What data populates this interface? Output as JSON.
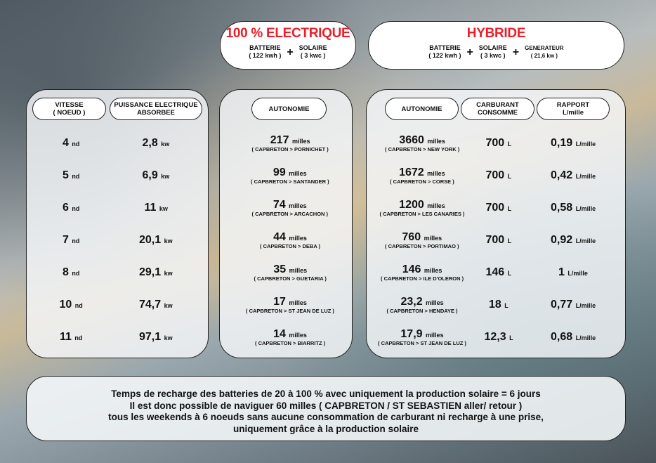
{
  "electric": {
    "title": "100 % ELECTRIQUE",
    "battery_label": "BATTERIE",
    "battery_value": "( 122 kwh )",
    "solar_label": "SOLAIRE",
    "solar_value": "( 3 kwc )",
    "plus": "+"
  },
  "hybrid": {
    "title": "HYBRIDE",
    "battery_label": "BATTERIE",
    "battery_value": "( 122  kwh )",
    "solar_label": "SOLAIRE",
    "solar_value": "( 3 kwc )",
    "generator_label": "GENERATEUR",
    "generator_value": "( 21,6  kw )",
    "plus": "+"
  },
  "speed_panel": {
    "headers": [
      "VITESSE\n( NOEUD )",
      "PUISSANCE ELECTRIQUE\nABSORBEE"
    ],
    "rows": [
      {
        "speed": "4",
        "power": "2,8"
      },
      {
        "speed": "5",
        "power": "6,9"
      },
      {
        "speed": "6",
        "power": "11"
      },
      {
        "speed": "7",
        "power": "20,1"
      },
      {
        "speed": "8",
        "power": "29,1"
      },
      {
        "speed": "10",
        "power": "74,7"
      },
      {
        "speed": "11",
        "power": "97,1"
      }
    ],
    "speed_unit": "nd",
    "power_unit": "kw"
  },
  "electric_panel": {
    "header": "AUTONOMIE",
    "unit": "milles",
    "rows": [
      {
        "miles": "217",
        "route": "( CAPBRETON > PORNICHET )"
      },
      {
        "miles": "99",
        "route": "( CAPBRETON > SANTANDER )"
      },
      {
        "miles": "74",
        "route": "( CAPBRETON > ARCACHON )"
      },
      {
        "miles": "44",
        "route": "( CAPBRETON > DEBA )"
      },
      {
        "miles": "35",
        "route": "( CAPBRETON > GUETARIA )"
      },
      {
        "miles": "17",
        "route": "( CAPBRETON > ST JEAN DE LUZ )"
      },
      {
        "miles": "14",
        "route": "( CAPBRETON > BIARRITZ )"
      }
    ]
  },
  "hybrid_panel": {
    "headers": [
      "AUTONOMIE",
      "CARBURANT\nCONSOMME",
      "RAPPORT\nL/mille"
    ],
    "unit": "milles",
    "fuel_unit": "L",
    "ratio_unit": "L/mille",
    "rows": [
      {
        "miles": "3660",
        "route": "( CAPBRETON > NEW YORK )",
        "fuel": "700",
        "ratio": "0,19"
      },
      {
        "miles": "1672",
        "route": "( CAPBRETON > CORSE )",
        "fuel": "700",
        "ratio": "0,42"
      },
      {
        "miles": "1200",
        "route": "( CAPBRETON > LES CANARIES )",
        "fuel": "700",
        "ratio": "0,58"
      },
      {
        "miles": "760",
        "route": "( CAPBRETON > PORTIMAO )",
        "fuel": "700",
        "ratio": "0,92"
      },
      {
        "miles": "146",
        "route": "( CAPBRETON > ILE D'OLERON )",
        "fuel": "146",
        "ratio": "1"
      },
      {
        "miles": "23,2",
        "route": "( CAPBRETON > HENDAYE )",
        "fuel": "18",
        "ratio": "0,77"
      },
      {
        "miles": "17,9",
        "route": "( CAPBRETON > ST JEAN DE LUZ )",
        "fuel": "12,3",
        "ratio": "0,68"
      }
    ]
  },
  "footer": {
    "lines": [
      "Temps de recharge des batteries de 20 à 100 % avec uniquement la production solaire = 6 jours",
      "Il est donc possible de naviguer 60 milles ( CAPBRETON / ST SEBASTIEN aller/ retour )",
      "tous les weekends à 6 noeuds sans aucune consommation de carburant ni recharge à une prise,",
      "uniquement grâce à la production solaire"
    ]
  }
}
